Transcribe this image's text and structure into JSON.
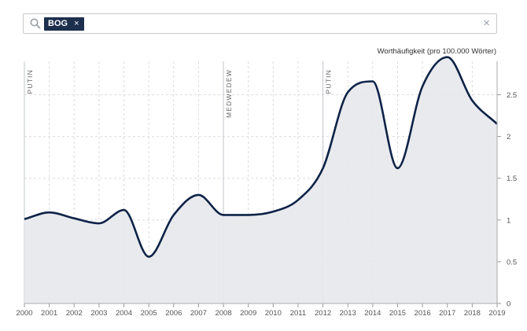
{
  "search": {
    "tag_label": "BOG",
    "tag_remove": "×",
    "clear": "×"
  },
  "chart_data": {
    "type": "area",
    "ylabel": "Worthäufigkeit (pro 100.000 Wörter)",
    "ylim": [
      0,
      2.9
    ],
    "yticks": [
      0,
      0.5,
      1,
      1.5,
      2,
      2.5
    ],
    "xlim": [
      2000,
      2019
    ],
    "xticks": [
      2000,
      2001,
      2002,
      2003,
      2004,
      2005,
      2006,
      2007,
      2008,
      2009,
      2010,
      2011,
      2012,
      2013,
      2014,
      2015,
      2016,
      2017,
      2018,
      2019
    ],
    "grid": true,
    "series": [
      {
        "x": [
          2000,
          2001,
          2002,
          2003,
          2004,
          2005,
          2006,
          2007,
          2008,
          2009,
          2010,
          2011,
          2012,
          2013,
          2014,
          2015,
          2016,
          2017,
          2018,
          2019
        ],
        "values": [
          1.01,
          1.09,
          1.02,
          0.96,
          1.12,
          0.56,
          1.06,
          1.3,
          1.06,
          1.06,
          1.1,
          1.24,
          1.62,
          2.53,
          2.66,
          1.62,
          2.6,
          2.95,
          2.43,
          2.15
        ]
      }
    ],
    "annotations": [
      {
        "x": 2000,
        "label": "PUTIN"
      },
      {
        "x": 2008,
        "label": "MEDWEDEW"
      },
      {
        "x": 2012,
        "label": "PUTIN"
      }
    ],
    "colors": {
      "line": "#0e2347",
      "fill": "#e5e8ec",
      "grid": "#dcdcdc",
      "period_line": "#c3c7cc",
      "axis": "#555555"
    }
  }
}
